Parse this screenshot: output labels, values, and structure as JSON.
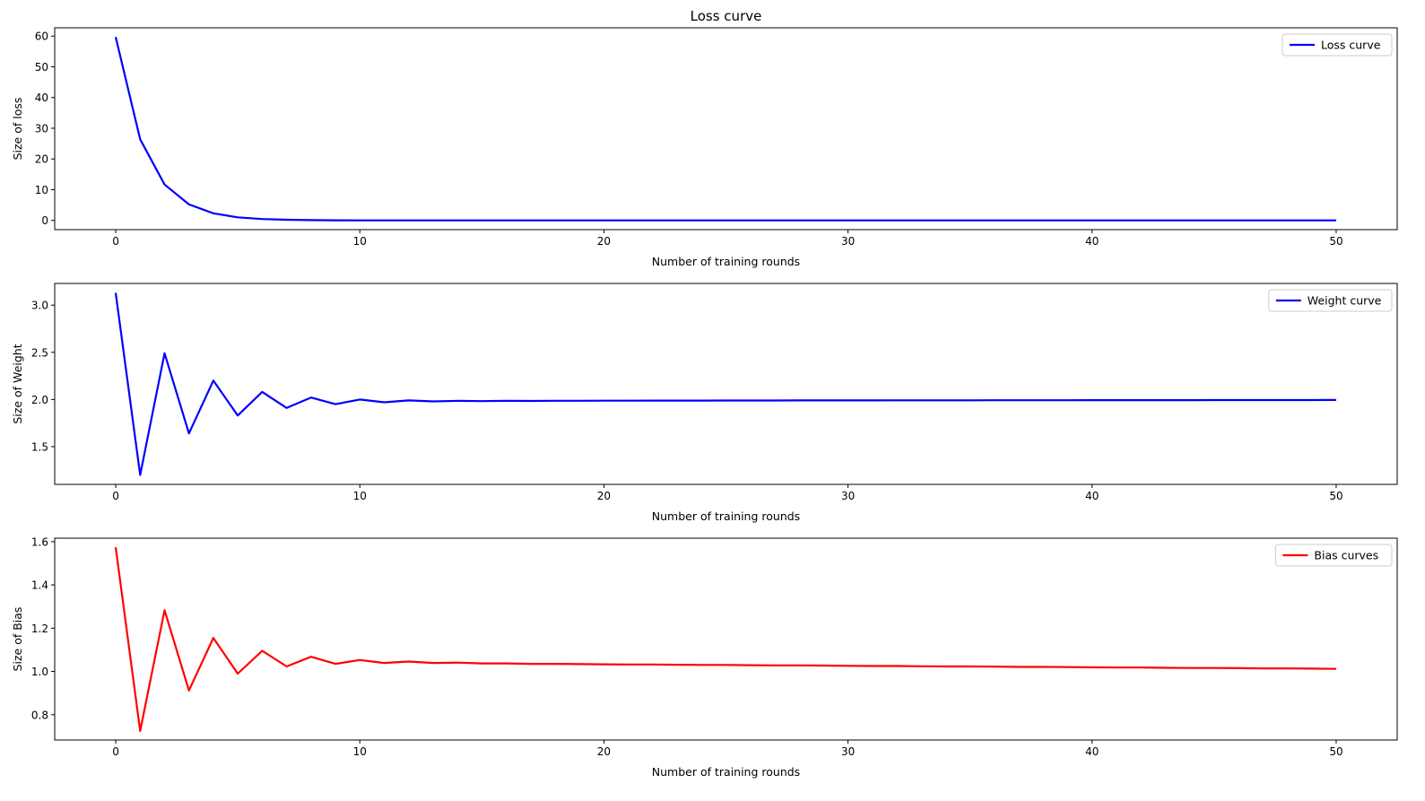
{
  "chart_data": [
    {
      "type": "line",
      "title": "Loss curve",
      "xlabel": "Number of training rounds",
      "ylabel": "Size of loss",
      "xlim": [
        -2.5,
        52.5
      ],
      "ylim": [
        -3,
        62.7
      ],
      "xticks": [
        0,
        10,
        20,
        30,
        40,
        50
      ],
      "yticks": [
        0,
        10,
        20,
        30,
        40,
        50,
        60
      ],
      "grid": false,
      "legend": "top-right",
      "series": [
        {
          "name": "Loss curve",
          "color": "#0000ff",
          "values": [
            59.7,
            26.4,
            11.7,
            5.2,
            2.3,
            1.0,
            0.45,
            0.2,
            0.09,
            0.04,
            0.02,
            0.01,
            0.005,
            0.002,
            0.001,
            0,
            0,
            0,
            0,
            0,
            0,
            0,
            0,
            0,
            0,
            0,
            0,
            0,
            0,
            0,
            0,
            0,
            0,
            0,
            0,
            0,
            0,
            0,
            0,
            0,
            0,
            0,
            0,
            0,
            0,
            0,
            0,
            0,
            0,
            0,
            0
          ]
        }
      ]
    },
    {
      "type": "line",
      "title": "",
      "xlabel": "Number of training rounds",
      "ylabel": "Size of Weight",
      "xlim": [
        -2.5,
        52.5
      ],
      "ylim": [
        1.1,
        3.23
      ],
      "xticks": [
        0,
        10,
        20,
        30,
        40,
        50
      ],
      "yticks": [
        "1.5",
        "2.0",
        "2.5",
        "3.0"
      ],
      "grid": false,
      "legend": "top-right",
      "series": [
        {
          "name": "Weight curve",
          "color": "#0000ff",
          "values": [
            3.13,
            1.2,
            2.49,
            1.64,
            2.2,
            1.83,
            2.08,
            1.91,
            2.02,
            1.95,
            2.0,
            1.97,
            1.99,
            1.98,
            1.985,
            1.982,
            1.985,
            1.984,
            1.986,
            1.986,
            1.987,
            1.987,
            1.988,
            1.988,
            1.988,
            1.989,
            1.989,
            1.989,
            1.99,
            1.99,
            1.99,
            1.99,
            1.991,
            1.991,
            1.991,
            1.991,
            1.992,
            1.992,
            1.992,
            1.992,
            1.993,
            1.993,
            1.993,
            1.993,
            1.993,
            1.994,
            1.994,
            1.994,
            1.994,
            1.994,
            1.995
          ]
        }
      ]
    },
    {
      "type": "line",
      "title": "",
      "xlabel": "Number of training rounds",
      "ylabel": "Size of Bias",
      "xlim": [
        -2.5,
        52.5
      ],
      "ylim": [
        0.683,
        1.616
      ],
      "xticks": [
        0,
        10,
        20,
        30,
        40,
        50
      ],
      "yticks": [
        "0.8",
        "1.0",
        "1.2",
        "1.4",
        "1.6"
      ],
      "grid": false,
      "legend": "top-right",
      "series": [
        {
          "name": "Bias curves",
          "color": "#ff0000",
          "values": [
            1.574,
            0.725,
            1.283,
            0.912,
            1.155,
            0.99,
            1.095,
            1.023,
            1.068,
            1.035,
            1.053,
            1.039,
            1.046,
            1.039,
            1.041,
            1.037,
            1.037,
            1.035,
            1.035,
            1.034,
            1.033,
            1.032,
            1.032,
            1.031,
            1.03,
            1.03,
            1.029,
            1.028,
            1.028,
            1.027,
            1.026,
            1.025,
            1.025,
            1.024,
            1.023,
            1.023,
            1.022,
            1.021,
            1.021,
            1.02,
            1.019,
            1.018,
            1.018,
            1.017,
            1.016,
            1.016,
            1.015,
            1.014,
            1.014,
            1.013,
            1.012
          ]
        }
      ]
    }
  ]
}
